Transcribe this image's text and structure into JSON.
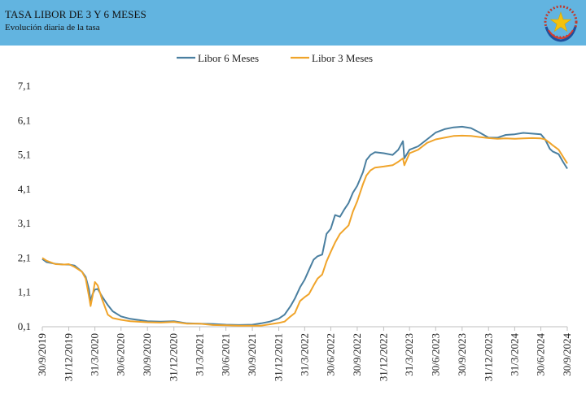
{
  "header": {
    "title": "TASA LIBOR DE 3 Y 6 MESES",
    "subtitle": "Evolución diaria de la tasa",
    "emblem_icon": "coat-of-arms-star-icon"
  },
  "colors": {
    "header_background": "#62b4e0",
    "series_6m": "#4a7fa0",
    "series_3m": "#f0a42a"
  },
  "chart_data": {
    "type": "line",
    "title": "TASA LIBOR DE 3 Y 6 MESES",
    "subtitle": "Evolución diaria de la tasa",
    "xlabel": "",
    "ylabel": "",
    "ylim": [
      0.1,
      7.1
    ],
    "yticks": [
      "0,1",
      "1,1",
      "2,1",
      "3,1",
      "4,1",
      "5,1",
      "6,1",
      "7,1"
    ],
    "xticks": [
      "30/9/2019",
      "31/12/2019",
      "31/3/2020",
      "30/6/2020",
      "30/9/2020",
      "31/12/2020",
      "31/3/2021",
      "30/6/2021",
      "30/9/2021",
      "31/12/2021",
      "31/3/2022",
      "30/6/2022",
      "30/9/2022",
      "31/12/2022",
      "31/3/2023",
      "30/6/2023",
      "30/9/2023",
      "31/12/2023",
      "31/3/2024",
      "30/6/2024",
      "30/9/2024"
    ],
    "xlim": [
      "2019-09-30",
      "2024-09-30"
    ],
    "grid": false,
    "legend": "top",
    "series": [
      {
        "name": "Libor 6 Meses",
        "color": "#4a7fa0",
        "points": [
          [
            "2019-09-30",
            2.07
          ],
          [
            "2019-10-15",
            1.98
          ],
          [
            "2019-11-15",
            1.93
          ],
          [
            "2019-12-15",
            1.91
          ],
          [
            "2019-12-31",
            1.91
          ],
          [
            "2020-01-20",
            1.88
          ],
          [
            "2020-02-15",
            1.7
          ],
          [
            "2020-02-28",
            1.55
          ],
          [
            "2020-03-10",
            1.2
          ],
          [
            "2020-03-16",
            0.85
          ],
          [
            "2020-03-23",
            1.05
          ],
          [
            "2020-03-31",
            1.18
          ],
          [
            "2020-04-10",
            1.2
          ],
          [
            "2020-04-25",
            0.98
          ],
          [
            "2020-05-15",
            0.73
          ],
          [
            "2020-06-01",
            0.55
          ],
          [
            "2020-06-30",
            0.4
          ],
          [
            "2020-08-01",
            0.33
          ],
          [
            "2020-09-30",
            0.26
          ],
          [
            "2020-11-15",
            0.25
          ],
          [
            "2020-12-31",
            0.26
          ],
          [
            "2021-02-15",
            0.2
          ],
          [
            "2021-03-31",
            0.19
          ],
          [
            "2021-05-15",
            0.18
          ],
          [
            "2021-06-30",
            0.16
          ],
          [
            "2021-08-15",
            0.15
          ],
          [
            "2021-09-30",
            0.16
          ],
          [
            "2021-10-31",
            0.2
          ],
          [
            "2021-11-30",
            0.25
          ],
          [
            "2021-12-31",
            0.34
          ],
          [
            "2022-01-20",
            0.45
          ],
          [
            "2022-02-10",
            0.7
          ],
          [
            "2022-02-25",
            0.92
          ],
          [
            "2022-03-15",
            1.25
          ],
          [
            "2022-03-31",
            1.47
          ],
          [
            "2022-04-15",
            1.75
          ],
          [
            "2022-05-01",
            2.05
          ],
          [
            "2022-05-15",
            2.15
          ],
          [
            "2022-05-31",
            2.2
          ],
          [
            "2022-06-15",
            2.8
          ],
          [
            "2022-06-30",
            2.95
          ],
          [
            "2022-07-15",
            3.35
          ],
          [
            "2022-08-01",
            3.3
          ],
          [
            "2022-08-15",
            3.5
          ],
          [
            "2022-08-31",
            3.7
          ],
          [
            "2022-09-15",
            4.0
          ],
          [
            "2022-09-30",
            4.2
          ],
          [
            "2022-10-20",
            4.6
          ],
          [
            "2022-11-01",
            4.95
          ],
          [
            "2022-11-15",
            5.1
          ],
          [
            "2022-12-01",
            5.18
          ],
          [
            "2022-12-31",
            5.15
          ],
          [
            "2023-01-31",
            5.1
          ],
          [
            "2023-02-20",
            5.25
          ],
          [
            "2023-03-08",
            5.5
          ],
          [
            "2023-03-13",
            5.0
          ],
          [
            "2023-03-31",
            5.25
          ],
          [
            "2023-04-30",
            5.35
          ],
          [
            "2023-05-31",
            5.55
          ],
          [
            "2023-06-30",
            5.75
          ],
          [
            "2023-07-31",
            5.85
          ],
          [
            "2023-08-31",
            5.9
          ],
          [
            "2023-09-30",
            5.92
          ],
          [
            "2023-10-31",
            5.88
          ],
          [
            "2023-11-30",
            5.75
          ],
          [
            "2023-12-31",
            5.6
          ],
          [
            "2024-01-31",
            5.6
          ],
          [
            "2024-02-29",
            5.68
          ],
          [
            "2024-03-31",
            5.7
          ],
          [
            "2024-04-30",
            5.74
          ],
          [
            "2024-05-31",
            5.72
          ],
          [
            "2024-06-30",
            5.7
          ],
          [
            "2024-07-15",
            5.55
          ],
          [
            "2024-07-31",
            5.28
          ],
          [
            "2024-08-10",
            5.2
          ],
          [
            "2024-08-31",
            5.12
          ],
          [
            "2024-09-15",
            4.9
          ],
          [
            "2024-09-30",
            4.7
          ]
        ]
      },
      {
        "name": "Libor 3 Meses",
        "color": "#f0a42a",
        "points": [
          [
            "2019-09-30",
            2.1
          ],
          [
            "2019-10-15",
            2.02
          ],
          [
            "2019-11-15",
            1.92
          ],
          [
            "2019-12-15",
            1.91
          ],
          [
            "2019-12-31",
            1.92
          ],
          [
            "2020-01-20",
            1.84
          ],
          [
            "2020-02-15",
            1.7
          ],
          [
            "2020-02-28",
            1.5
          ],
          [
            "2020-03-10",
            1.0
          ],
          [
            "2020-03-16",
            0.7
          ],
          [
            "2020-03-23",
            1.0
          ],
          [
            "2020-03-31",
            1.4
          ],
          [
            "2020-04-10",
            1.3
          ],
          [
            "2020-04-25",
            0.9
          ],
          [
            "2020-05-15",
            0.45
          ],
          [
            "2020-06-01",
            0.35
          ],
          [
            "2020-06-30",
            0.3
          ],
          [
            "2020-08-01",
            0.26
          ],
          [
            "2020-09-30",
            0.23
          ],
          [
            "2020-11-15",
            0.22
          ],
          [
            "2020-12-31",
            0.24
          ],
          [
            "2021-02-15",
            0.19
          ],
          [
            "2021-03-31",
            0.19
          ],
          [
            "2021-05-15",
            0.15
          ],
          [
            "2021-06-30",
            0.14
          ],
          [
            "2021-08-15",
            0.13
          ],
          [
            "2021-09-30",
            0.13
          ],
          [
            "2021-10-31",
            0.13
          ],
          [
            "2021-11-30",
            0.17
          ],
          [
            "2021-12-31",
            0.21
          ],
          [
            "2022-01-20",
            0.25
          ],
          [
            "2022-02-10",
            0.4
          ],
          [
            "2022-02-25",
            0.5
          ],
          [
            "2022-03-15",
            0.85
          ],
          [
            "2022-03-31",
            0.96
          ],
          [
            "2022-04-15",
            1.05
          ],
          [
            "2022-05-01",
            1.3
          ],
          [
            "2022-05-15",
            1.5
          ],
          [
            "2022-05-31",
            1.62
          ],
          [
            "2022-06-15",
            2.0
          ],
          [
            "2022-06-30",
            2.28
          ],
          [
            "2022-07-15",
            2.55
          ],
          [
            "2022-08-01",
            2.8
          ],
          [
            "2022-08-15",
            2.92
          ],
          [
            "2022-08-31",
            3.05
          ],
          [
            "2022-09-15",
            3.45
          ],
          [
            "2022-09-30",
            3.75
          ],
          [
            "2022-10-20",
            4.25
          ],
          [
            "2022-11-01",
            4.5
          ],
          [
            "2022-11-15",
            4.65
          ],
          [
            "2022-12-01",
            4.73
          ],
          [
            "2022-12-31",
            4.76
          ],
          [
            "2023-01-31",
            4.8
          ],
          [
            "2023-02-20",
            4.9
          ],
          [
            "2023-03-08",
            5.0
          ],
          [
            "2023-03-13",
            4.8
          ],
          [
            "2023-03-31",
            5.15
          ],
          [
            "2023-04-30",
            5.25
          ],
          [
            "2023-05-31",
            5.45
          ],
          [
            "2023-06-30",
            5.55
          ],
          [
            "2023-07-31",
            5.6
          ],
          [
            "2023-08-31",
            5.65
          ],
          [
            "2023-09-30",
            5.66
          ],
          [
            "2023-10-31",
            5.65
          ],
          [
            "2023-11-30",
            5.62
          ],
          [
            "2023-12-31",
            5.59
          ],
          [
            "2024-01-31",
            5.57
          ],
          [
            "2024-02-29",
            5.58
          ],
          [
            "2024-03-31",
            5.57
          ],
          [
            "2024-04-30",
            5.58
          ],
          [
            "2024-05-31",
            5.59
          ],
          [
            "2024-06-30",
            5.58
          ],
          [
            "2024-07-15",
            5.55
          ],
          [
            "2024-07-31",
            5.45
          ],
          [
            "2024-08-10",
            5.38
          ],
          [
            "2024-08-31",
            5.25
          ],
          [
            "2024-09-15",
            5.05
          ],
          [
            "2024-09-30",
            4.85
          ]
        ]
      }
    ]
  }
}
